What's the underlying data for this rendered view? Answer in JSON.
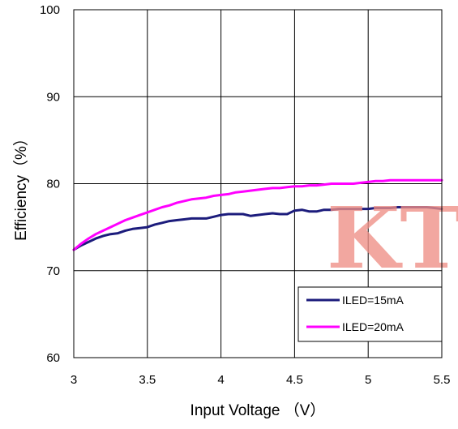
{
  "chart_data": {
    "type": "line",
    "title": "",
    "xlabel": "Input Voltage （V）",
    "ylabel": "Efficiency（%）",
    "xlim": [
      3,
      5.5
    ],
    "ylim": [
      60,
      100
    ],
    "xticks": [
      "3",
      "3.5",
      "4",
      "4.5",
      "5",
      "5.5"
    ],
    "yticks": [
      "60",
      "70",
      "80",
      "90",
      "100"
    ],
    "grid": true,
    "legend_position": "bottom-right",
    "series": [
      {
        "name": "ILED=15mA",
        "color": "#1c1c7c",
        "x": [
          3.0,
          3.05,
          3.1,
          3.15,
          3.2,
          3.25,
          3.3,
          3.35,
          3.4,
          3.45,
          3.5,
          3.55,
          3.6,
          3.65,
          3.7,
          3.75,
          3.8,
          3.85,
          3.9,
          3.95,
          4.0,
          4.05,
          4.1,
          4.15,
          4.2,
          4.25,
          4.3,
          4.35,
          4.4,
          4.45,
          4.5,
          4.55,
          4.6,
          4.65,
          4.7,
          4.75,
          4.8,
          4.85,
          4.9,
          4.95,
          5.0,
          5.05,
          5.1,
          5.15,
          5.2,
          5.25,
          5.3,
          5.35,
          5.4,
          5.45,
          5.5
        ],
        "y": [
          72.4,
          72.9,
          73.3,
          73.7,
          74.0,
          74.2,
          74.3,
          74.6,
          74.8,
          74.9,
          75.0,
          75.3,
          75.5,
          75.7,
          75.8,
          75.9,
          76.0,
          76.0,
          76.0,
          76.2,
          76.4,
          76.5,
          76.5,
          76.5,
          76.3,
          76.4,
          76.5,
          76.6,
          76.5,
          76.5,
          76.9,
          77.0,
          76.8,
          76.8,
          77.0,
          77.0,
          77.1,
          77.1,
          77.1,
          77.1,
          77.1,
          77.2,
          77.2,
          77.2,
          77.3,
          77.3,
          77.3,
          77.3,
          77.3,
          77.2,
          77.1
        ]
      },
      {
        "name": "ILED=20mA",
        "color": "#ff00ff",
        "x": [
          3.0,
          3.05,
          3.1,
          3.15,
          3.2,
          3.25,
          3.3,
          3.35,
          3.4,
          3.45,
          3.5,
          3.55,
          3.6,
          3.65,
          3.7,
          3.75,
          3.8,
          3.85,
          3.9,
          3.95,
          4.0,
          4.05,
          4.1,
          4.15,
          4.2,
          4.25,
          4.3,
          4.35,
          4.4,
          4.45,
          4.5,
          4.55,
          4.6,
          4.65,
          4.7,
          4.75,
          4.8,
          4.85,
          4.9,
          4.95,
          5.0,
          5.05,
          5.1,
          5.15,
          5.2,
          5.25,
          5.3,
          5.35,
          5.4,
          5.45,
          5.5
        ],
        "y": [
          72.4,
          73.1,
          73.7,
          74.2,
          74.6,
          75.0,
          75.4,
          75.8,
          76.1,
          76.4,
          76.7,
          77.0,
          77.3,
          77.5,
          77.8,
          78.0,
          78.2,
          78.3,
          78.4,
          78.6,
          78.7,
          78.8,
          79.0,
          79.1,
          79.2,
          79.3,
          79.4,
          79.5,
          79.5,
          79.6,
          79.7,
          79.7,
          79.8,
          79.8,
          79.9,
          80.0,
          80.0,
          80.0,
          80.0,
          80.1,
          80.2,
          80.3,
          80.3,
          80.4,
          80.4,
          80.4,
          80.4,
          80.4,
          80.4,
          80.4,
          80.4
        ]
      }
    ]
  },
  "watermark": {
    "text": "KT",
    "color": "#ef8f86"
  },
  "plot_style": {
    "background": "#ffffff",
    "grid_color": "#000000",
    "frame_color": "#000000"
  }
}
